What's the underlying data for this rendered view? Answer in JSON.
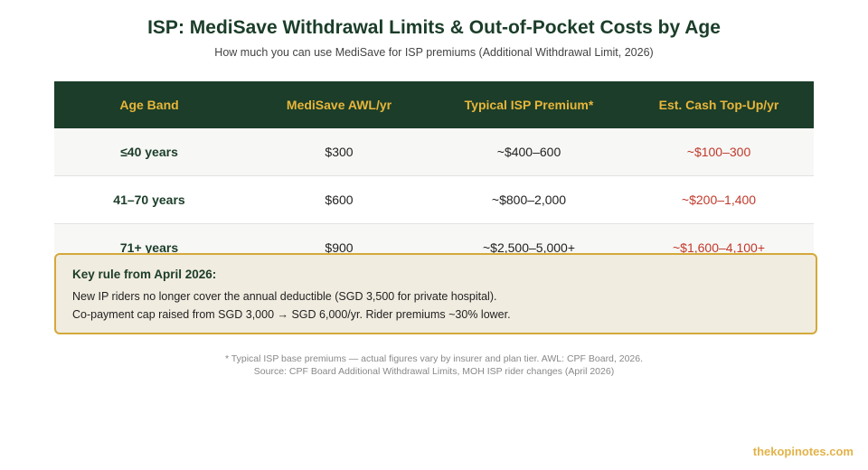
{
  "header": {
    "title": "ISP: MediSave Withdrawal Limits & Out-of-Pocket Costs by Age",
    "subtitle": "How much you can use MediSave for ISP premiums (Additional Withdrawal Limit, 2026)"
  },
  "table": {
    "columns": [
      "Age Band",
      "MediSave AWL/yr",
      "Typical ISP Premium*",
      "Est. Cash Top-Up/yr"
    ],
    "rows": [
      {
        "age": "≤40 years",
        "awl": "$300",
        "premium": "~$400–600",
        "cash": "~$100–300"
      },
      {
        "age": "41–70 years",
        "awl": "$600",
        "premium": "~$800–2,000",
        "cash": "~$200–1,400"
      },
      {
        "age": "71+ years",
        "awl": "$900",
        "premium": "~$2,500–5,000+",
        "cash": "~$1,600–4,100+"
      }
    ]
  },
  "callout": {
    "title": "Key rule from April 2026:",
    "line1": "New IP riders no longer cover the annual deductible (SGD 3,500 for private hospital).",
    "line2": "Co-payment cap raised from SGD 3,000 → SGD 6,000/yr. Rider premiums ~30% lower."
  },
  "footnote": {
    "line1": "* Typical ISP base premiums — actual figures vary by insurer and plan tier. AWL: CPF Board, 2026.",
    "line2": "Source: CPF Board Additional Withdrawal Limits, MOH ISP rider changes (April 2026)"
  },
  "brand": "thekopinotes.com",
  "colors": {
    "header_bg": "#1b3d29",
    "header_text": "#e8b63a",
    "cash_text": "#c0392b",
    "callout_bg": "#f1ece0",
    "callout_border": "#d4a93a"
  }
}
